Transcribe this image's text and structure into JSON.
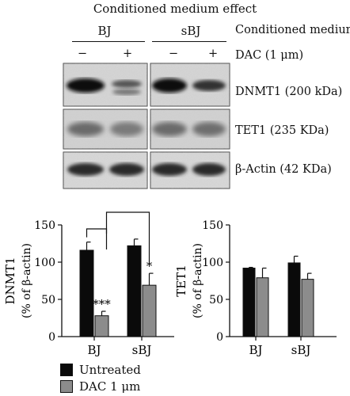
{
  "header": {
    "title": "Conditioned medium effect",
    "group_bj": "BJ",
    "group_sbj": "sBJ",
    "cm_label": "Conditioned medium",
    "dac_label": "DAC (1 μm)",
    "lanes": [
      "−",
      "+",
      "−",
      "+"
    ]
  },
  "blots": [
    {
      "label": "DNMT1 (200 kDa)"
    },
    {
      "label": "TET1 (235 KDa)"
    },
    {
      "label": "β-Actin (42 KDa)"
    }
  ],
  "legend": {
    "untreated": "Untreated",
    "dac": "DAC 1 μm"
  },
  "colors": {
    "untreated": "#0a0a0a",
    "dac": "#8c8c8c"
  },
  "chart_data": [
    {
      "type": "bar",
      "ylabel_1": "DNMT1",
      "ylabel_2": "(% of β-actin)",
      "categories": [
        "BJ",
        "sBJ"
      ],
      "ylim": [
        0,
        150
      ],
      "yticks": [
        0,
        50,
        100,
        150
      ],
      "series": [
        {
          "name": "Untreated",
          "values": [
            116,
            122
          ],
          "errors": [
            11,
            9
          ]
        },
        {
          "name": "DAC 1 μm",
          "values": [
            28,
            69
          ],
          "errors": [
            6,
            16
          ]
        }
      ],
      "annotations": [
        "***",
        "*"
      ]
    },
    {
      "type": "bar",
      "ylabel_1": "TET1",
      "ylabel_2": "(% of β-actin)",
      "categories": [
        "BJ",
        "sBJ"
      ],
      "ylim": [
        0,
        150
      ],
      "yticks": [
        0,
        50,
        100,
        150
      ],
      "series": [
        {
          "name": "Untreated",
          "values": [
            92,
            99
          ],
          "errors": [
            1,
            9
          ]
        },
        {
          "name": "DAC 1 μm",
          "values": [
            79,
            77
          ],
          "errors": [
            13,
            8
          ]
        }
      ]
    }
  ]
}
